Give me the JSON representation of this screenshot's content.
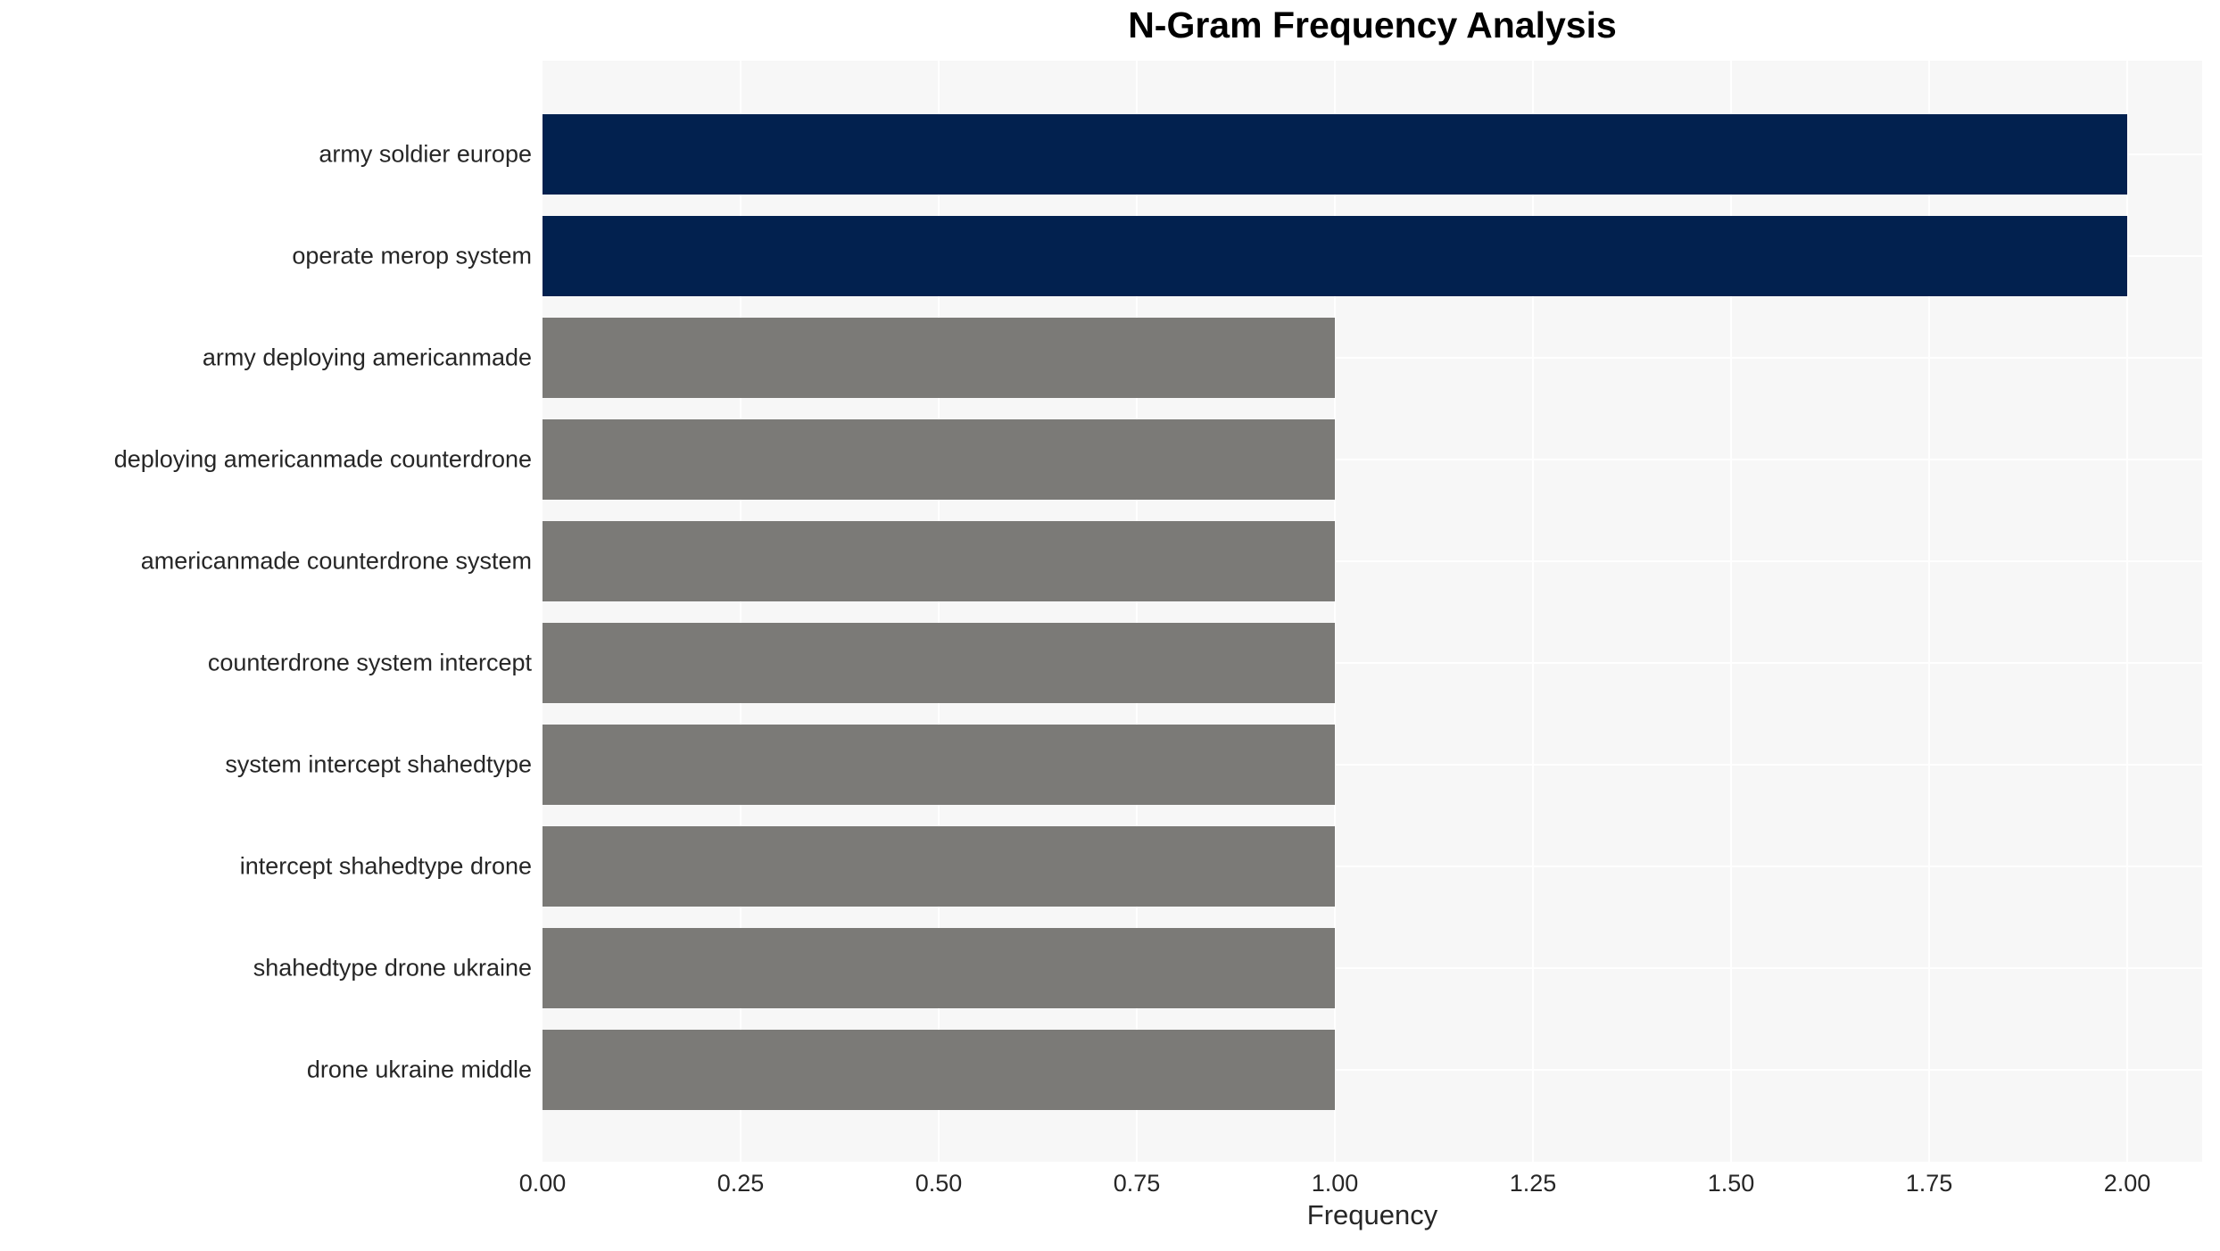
{
  "chart_data": {
    "type": "bar",
    "orientation": "horizontal",
    "title": "N-Gram Frequency Analysis",
    "xlabel": "Frequency",
    "ylabel": "",
    "categories": [
      "army soldier europe",
      "operate merop system",
      "army deploying americanmade",
      "deploying americanmade counterdrone",
      "americanmade counterdrone system",
      "counterdrone system intercept",
      "system intercept shahedtype",
      "intercept shahedtype drone",
      "shahedtype drone ukraine",
      "drone ukraine middle"
    ],
    "values": [
      2,
      2,
      1,
      1,
      1,
      1,
      1,
      1,
      1,
      1
    ],
    "xlim": [
      0,
      2.1
    ],
    "xticks": [
      "0.00",
      "0.25",
      "0.50",
      "0.75",
      "1.00",
      "1.25",
      "1.50",
      "1.75",
      "2.00"
    ],
    "xtick_values": [
      0,
      0.25,
      0.5,
      0.75,
      1.0,
      1.25,
      1.5,
      1.75,
      2.0
    ],
    "grid": true,
    "legend": false,
    "bar_colors": [
      "#02214f",
      "#02214f",
      "#7b7a77",
      "#7b7a77",
      "#7b7a77",
      "#7b7a77",
      "#7b7a77",
      "#7b7a77",
      "#7b7a77",
      "#7b7a77"
    ],
    "colors": {
      "highlight_bar": "#02214f",
      "default_bar": "#7b7a77",
      "plot_background": "#f7f7f7",
      "gridline": "#ffffff",
      "text": "#262626",
      "title_text": "#000000"
    }
  }
}
